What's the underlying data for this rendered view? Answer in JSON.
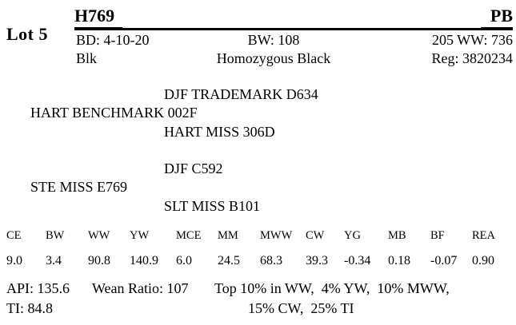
{
  "colors": {
    "text": "#000000",
    "background": "#ffffff"
  },
  "header": {
    "lot_label": "Lot 5",
    "tattoo": "H769",
    "breed_code": "PB"
  },
  "info": {
    "birth_date": "BD: 4-10-20",
    "birth_weight": "BW: 108",
    "adj_205_ww": "205 WW: 736",
    "color": "Blk",
    "genetic_status": "Homozygous Black",
    "registration": "Reg: 3820234"
  },
  "pedigree": {
    "sire_sire": "DJF TRADEMARK D634",
    "sire": "HART BENCHMARK 002F",
    "sire_dam": "HART MISS 306D",
    "dam_sire": "DJF C592",
    "dam": "STE MISS E769",
    "dam_dam": "SLT MISS B101"
  },
  "epd_table": {
    "headers": [
      "CE",
      "BW",
      "WW",
      "YW",
      "MCE",
      "MM",
      "MWW",
      "CW",
      "YG",
      "MB",
      "BF",
      "REA"
    ],
    "values": [
      "9.0",
      "3.4",
      "90.8",
      "140.9",
      "6.0",
      "24.5",
      "68.3",
      "39.3",
      "-0.34",
      "0.18",
      "-0.07",
      "0.90"
    ]
  },
  "footer": {
    "api": "API: 135.6",
    "wean_ratio": "Wean Ratio: 107",
    "rank_line1": "Top 10% in WW,  4% YW,  10% MWW,",
    "ti": "TI: 84.8",
    "rank_line2": "15% CW,  25% TI"
  }
}
